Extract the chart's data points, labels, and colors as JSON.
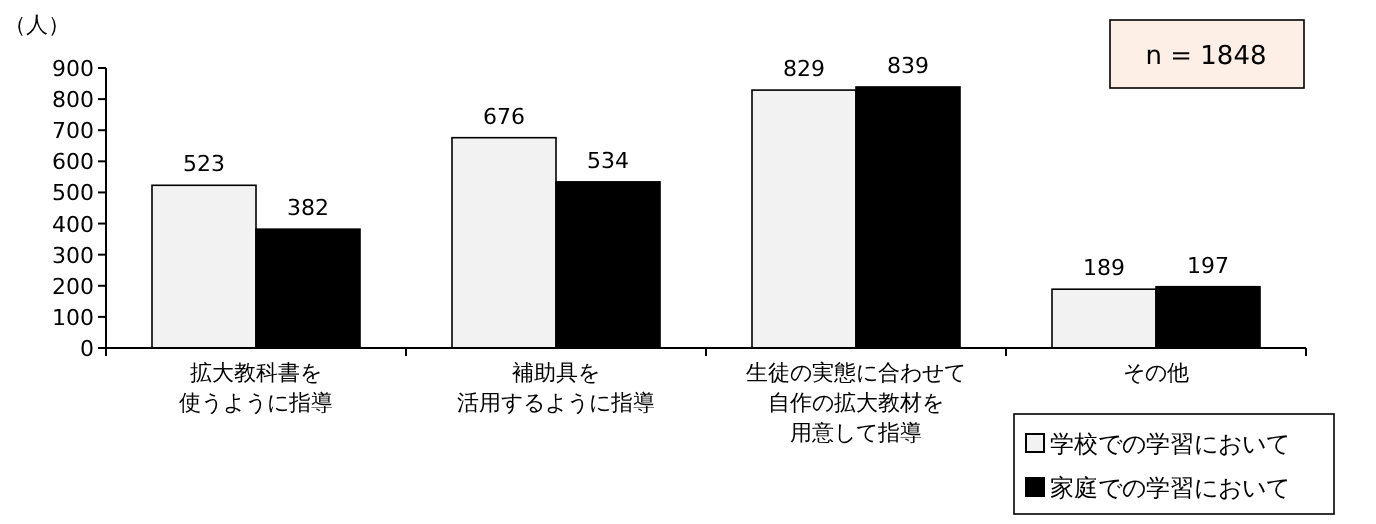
{
  "chart_data": {
    "type": "bar",
    "ylabel": "（人）",
    "categories": [
      "拡大教科書を使うように指導",
      "補助具を活用するように指導",
      "生徒の実態に合わせて自作の拡大教材を用意して指導",
      "その他"
    ],
    "series": [
      {
        "name": "学校での学習において",
        "color": "#f2f2f2",
        "values": [
          523,
          676,
          829,
          189
        ]
      },
      {
        "name": "家庭での学習において",
        "color": "#000000",
        "values": [
          382,
          534,
          839,
          197
        ]
      }
    ],
    "ylim": [
      0,
      900
    ],
    "yticks": [
      0,
      100,
      200,
      300,
      400,
      500,
      600,
      700,
      800,
      900
    ],
    "data_labels": true,
    "grid": false,
    "legend": "bottom right",
    "annotations": [
      "n = 1848"
    ]
  }
}
